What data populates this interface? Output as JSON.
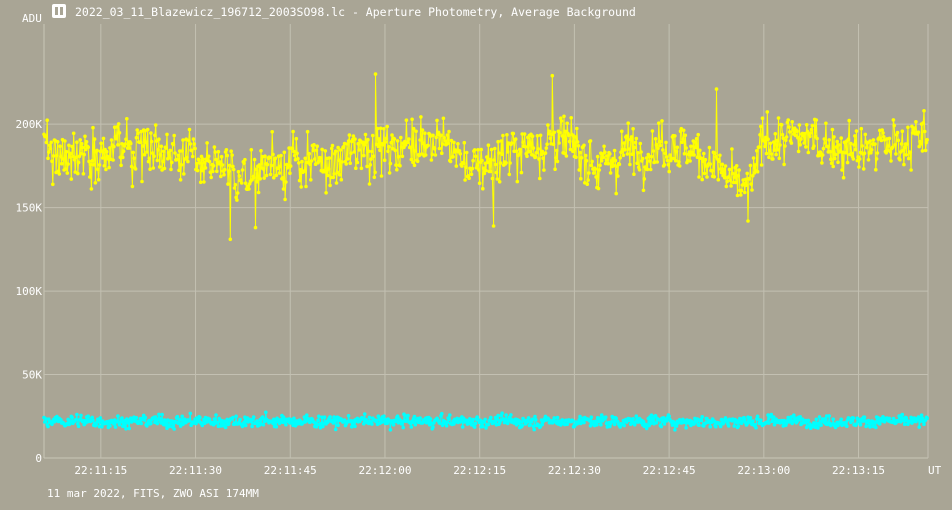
{
  "window": {
    "title": "2022_03_11_Blazewicz_196712_2003SO98.lc - Aperture Photometry, Average Background",
    "icon": "lightcurve-app-icon"
  },
  "footer": {
    "info": "11 mar 2022, FITS, ZWO ASI 174MM"
  },
  "chart_data": {
    "type": "line",
    "title": "",
    "ylabel": "ADU",
    "xlabel": "UT",
    "ylim": [
      0,
      260000
    ],
    "xlim": [
      "22:11:06",
      "22:13:26"
    ],
    "yticks": [
      0,
      50000,
      100000,
      150000,
      200000
    ],
    "ytick_labels": [
      "0",
      "50K",
      "100K",
      "150K",
      "200K"
    ],
    "xtick_labels": [
      "22:11:15",
      "22:11:30",
      "22:11:45",
      "22:12:00",
      "22:12:15",
      "22:12:30",
      "22:12:45",
      "22:13:00",
      "22:13:15"
    ],
    "grid": true,
    "legend": "none",
    "background": "#a9a595",
    "series": [
      {
        "color": "#ffff00",
        "marker": "dot",
        "envelope_time": [
          "22:11:06",
          "22:11:14",
          "22:11:24",
          "22:11:30",
          "22:11:34",
          "22:11:37",
          "22:11:42",
          "22:11:48",
          "22:11:52",
          "22:11:56",
          "22:12:02",
          "22:12:06",
          "22:12:10",
          "22:12:14",
          "22:12:18",
          "22:12:22",
          "22:12:26",
          "22:12:30",
          "22:12:34",
          "22:12:38",
          "22:12:46",
          "22:12:50",
          "22:12:53",
          "22:12:56",
          "22:12:58",
          "22:13:00",
          "22:13:06",
          "22:13:15",
          "22:13:26"
        ],
        "envelope_mean": [
          185000,
          182000,
          188000,
          178000,
          172000,
          168000,
          178000,
          176000,
          174000,
          188000,
          185000,
          192000,
          188000,
          172000,
          180000,
          186000,
          190000,
          186000,
          174000,
          184000,
          188000,
          182000,
          172000,
          162000,
          165000,
          190000,
          192000,
          184000,
          192000
        ],
        "envelope_spread": [
          18000,
          16000,
          16000,
          14000,
          14000,
          16000,
          16000,
          16000,
          16000,
          16000,
          18000,
          18000,
          18000,
          16000,
          16000,
          16000,
          18000,
          16000,
          16000,
          18000,
          16000,
          16000,
          14000,
          14000,
          14000,
          16000,
          16000,
          16000,
          16000
        ],
        "noise_sigma": 9000,
        "extremes": [
          {
            "t": "22:11:35.5",
            "v": 131000
          },
          {
            "t": "22:11:39.5",
            "v": 138000
          },
          {
            "t": "22:11:58.5",
            "v": 230000
          },
          {
            "t": "22:12:17.2",
            "v": 139000
          },
          {
            "t": "22:12:26.5",
            "v": 229000
          },
          {
            "t": "22:12:52.5",
            "v": 221000
          },
          {
            "t": "22:12:57.5",
            "v": 142000
          }
        ]
      },
      {
        "color": "#00ffff",
        "marker": "dot",
        "mean": 22000,
        "spread": 4000,
        "noise_sigma": 2500,
        "min": 12000,
        "max": 33000
      }
    ]
  }
}
